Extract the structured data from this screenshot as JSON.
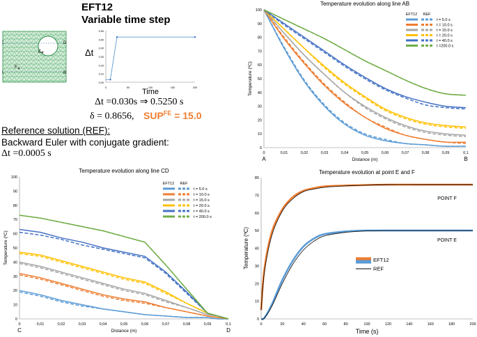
{
  "header": {
    "title": "EFT12",
    "subtitle": "Variable time step",
    "dt_label": "Δt",
    "dt_axis_label": "Time",
    "dt_eq": "Δt =0.030s ⇒ 0.5250 s",
    "delta_eq": "δ = 0.8656,",
    "sup_eq": "SUP",
    "sup_sup": "FE",
    "sup_val": " = 15.0",
    "sup_color": "#ED7D31"
  },
  "mesh": {
    "points": [
      "C",
      "D",
      "E",
      "F",
      "A",
      "B"
    ]
  },
  "reference": {
    "line1": "Reference solution (REF):",
    "line2": "Backward Euler with conjugate gradient:",
    "line3": "Δt =0.0005 s"
  },
  "legend": {
    "eft12": "EFT12",
    "ref": "REF"
  },
  "colors": {
    "t5": "#5B9BD5",
    "t10": "#ED7D31",
    "t15": "#A5A5A5",
    "t20": "#FFC000",
    "t40": "#4472C4",
    "t200": "#70AD47",
    "black": "#000000"
  },
  "chart_data": [
    {
      "type": "line",
      "id": "dt-mini",
      "x": [
        0,
        10,
        25,
        50,
        100,
        150,
        200
      ],
      "values": [
        0.03,
        0.03,
        0.525,
        0.525,
        0.525,
        0.525,
        0.525
      ],
      "xlim": [
        0,
        200
      ],
      "ylim": [
        0,
        0.6
      ],
      "xticks": [
        "0",
        "50",
        "100",
        "150",
        "200"
      ],
      "yticks": [
        "0,00",
        "0,10",
        "0,20",
        "0,30",
        "0,40",
        "0,50",
        "0,60"
      ],
      "xlabel": "Time",
      "ylabel": "Δt"
    },
    {
      "type": "line",
      "id": "ab",
      "title": "Temperature evolution along line AB",
      "xlabel": "Distance (m)",
      "ylabel": "Temperature (ºC)",
      "xlim": [
        0,
        0.1
      ],
      "ylim": [
        0,
        100
      ],
      "xticks": [
        "0",
        "0,01",
        "0,02",
        "0,03",
        "0,04",
        "0,05",
        "0,06",
        "0,07",
        "0,08",
        "0,09",
        "0,1"
      ],
      "yticks": [
        "0",
        "10",
        "20",
        "30",
        "40",
        "50",
        "60",
        "70",
        "80",
        "90",
        "100"
      ],
      "end_labels": [
        "A",
        "B"
      ],
      "x": [
        0,
        0.01,
        0.02,
        0.03,
        0.04,
        0.05,
        0.06,
        0.07,
        0.08,
        0.09,
        0.1
      ],
      "series": [
        {
          "name": "t = 5.0 s",
          "key": "t5",
          "eft": [
            100,
            72,
            48,
            30,
            17,
            9,
            5,
            3,
            2,
            1,
            1
          ],
          "ref": [
            100,
            73,
            49,
            31,
            18,
            10,
            6,
            3,
            2,
            1,
            1
          ]
        },
        {
          "name": "t = 10.0 s",
          "key": "t10",
          "eft": [
            100,
            79,
            61,
            45,
            32,
            22,
            14,
            9,
            6,
            4,
            4
          ],
          "ref": [
            100,
            80,
            62,
            46,
            33,
            22,
            15,
            9,
            6,
            4,
            3
          ]
        },
        {
          "name": "t = 15.0 s",
          "key": "t15",
          "eft": [
            100,
            83,
            67,
            53,
            40,
            30,
            22,
            16,
            12,
            10,
            9
          ],
          "ref": [
            100,
            83,
            67,
            53,
            40,
            29,
            21,
            15,
            11,
            9,
            8
          ]
        },
        {
          "name": "t = 20.0 s",
          "key": "t20",
          "eft": [
            100,
            86,
            72,
            59,
            47,
            37,
            28,
            22,
            18,
            16,
            15
          ],
          "ref": [
            100,
            86,
            72,
            58,
            46,
            36,
            27,
            21,
            17,
            15,
            14
          ]
        },
        {
          "name": "t = 40.0 s",
          "key": "t40",
          "eft": [
            100,
            90,
            80,
            70,
            60,
            51,
            43,
            37,
            33,
            30,
            29
          ],
          "ref": [
            100,
            89,
            79,
            69,
            59,
            50,
            42,
            36,
            31,
            29,
            28
          ]
        },
        {
          "name": "t =200.0 s",
          "key": "t200",
          "eft": [
            100,
            93,
            86,
            79,
            71,
            63,
            56,
            49,
            43,
            39,
            38
          ],
          "ref": [
            100,
            93,
            86,
            79,
            71,
            63,
            56,
            49,
            43,
            39,
            38
          ]
        }
      ],
      "legend_headers": [
        "EFT12",
        "REF"
      ],
      "legend": "top-right"
    },
    {
      "type": "line",
      "id": "cd",
      "title": "Temperature evolution along line CD",
      "xlabel": "Distance (m)",
      "ylabel": "Temperature (ºC)",
      "xlim": [
        0,
        0.1
      ],
      "ylim": [
        0,
        100
      ],
      "xticks": [
        "0",
        "0,01",
        "0,02",
        "0,03",
        "0,04",
        "0,05",
        "0,06",
        "0,07",
        "0,08",
        "0,09",
        "0,1"
      ],
      "yticks": [
        "0",
        "10",
        "20",
        "30",
        "40",
        "50",
        "60",
        "70",
        "80",
        "90",
        "100"
      ],
      "end_labels": [
        "C",
        "D"
      ],
      "x": [
        0,
        0.01,
        0.02,
        0.03,
        0.04,
        0.05,
        0.06,
        0.07,
        0.08,
        0.09,
        0.095,
        0.1
      ],
      "series": [
        {
          "name": "t =   5.0 s",
          "key": "t5",
          "eft": [
            20,
            17,
            13,
            10,
            7,
            5,
            3,
            2,
            1,
            1,
            0,
            0
          ],
          "ref": [
            19,
            16,
            12,
            9,
            7,
            5,
            3,
            2,
            1,
            1,
            0,
            0
          ]
        },
        {
          "name": "t =  10.0 s",
          "key": "t10",
          "eft": [
            32,
            29,
            25,
            21,
            17,
            14,
            12,
            8,
            5,
            2,
            1,
            0
          ],
          "ref": [
            31,
            28,
            24,
            20,
            16,
            13,
            11,
            8,
            5,
            2,
            1,
            0
          ]
        },
        {
          "name": "t =  15.0 s",
          "key": "t15",
          "eft": [
            40,
            37,
            33,
            29,
            25,
            21,
            18,
            13,
            8,
            3,
            2,
            0
          ],
          "ref": [
            39,
            36,
            32,
            28,
            24,
            20,
            17,
            12,
            8,
            3,
            2,
            0
          ]
        },
        {
          "name": "t =  20.0 s",
          "key": "t20",
          "eft": [
            47,
            45,
            41,
            37,
            33,
            29,
            26,
            19,
            11,
            4,
            2,
            0
          ],
          "ref": [
            46,
            44,
            40,
            36,
            32,
            28,
            25,
            18,
            11,
            4,
            2,
            0
          ]
        },
        {
          "name": "t =  40.0 s",
          "key": "t40",
          "eft": [
            63,
            61,
            57,
            54,
            50,
            47,
            44,
            33,
            19,
            4,
            2,
            0
          ],
          "ref": [
            61,
            59,
            56,
            52,
            49,
            46,
            43,
            32,
            18,
            4,
            2,
            0
          ]
        },
        {
          "name": "t = 200.0 s",
          "key": "t200",
          "eft": [
            73,
            71,
            68,
            65,
            62,
            58,
            54,
            38,
            21,
            4,
            2,
            0
          ],
          "ref": [
            73,
            71,
            68,
            65,
            62,
            58,
            54,
            38,
            21,
            4,
            2,
            0
          ]
        }
      ],
      "legend_headers": [
        "EFT12",
        "REF"
      ],
      "legend": "top-right"
    },
    {
      "type": "line",
      "id": "ef",
      "title": "Temperature evolution at point E and F",
      "xlabel": "Time  (s)",
      "ylabel": "Temperature (ºC)",
      "xlim": [
        0,
        200
      ],
      "ylim": [
        0,
        80
      ],
      "xticks": [
        "0",
        "20",
        "40",
        "60",
        "80",
        "100",
        "120",
        "140",
        "160",
        "180",
        "200"
      ],
      "yticks": [
        "0",
        "10",
        "20",
        "30",
        "40",
        "50",
        "60",
        "70",
        "80"
      ],
      "annotations": [
        "POINT F",
        "POINT E"
      ],
      "x": [
        0,
        3,
        10,
        20,
        30,
        40,
        50,
        60,
        80,
        100,
        120,
        150,
        200
      ],
      "series": [
        {
          "name": "F-EFT12",
          "key": "t10",
          "eft": [
            5,
            28,
            49,
            62,
            69,
            72.5,
            74,
            75,
            75.5,
            75.8,
            76,
            76,
            76
          ]
        },
        {
          "name": "F-REF",
          "key": "black",
          "eft": [
            5,
            26,
            47,
            61,
            68,
            72,
            73.5,
            74.5,
            75.3,
            75.7,
            76,
            76,
            76
          ]
        },
        {
          "name": "E-EFT12",
          "key": "t5",
          "eft": [
            0,
            0.5,
            8,
            22,
            33,
            41,
            45.5,
            48,
            49.5,
            50,
            50,
            50,
            50
          ]
        },
        {
          "name": "E-REF",
          "key": "black",
          "eft": [
            0,
            0.5,
            7,
            20,
            31,
            39,
            44,
            47,
            49,
            49.8,
            50,
            50,
            50
          ]
        }
      ],
      "legend_entries": [
        "EFT12",
        "REF"
      ],
      "legend": "center-left"
    }
  ]
}
